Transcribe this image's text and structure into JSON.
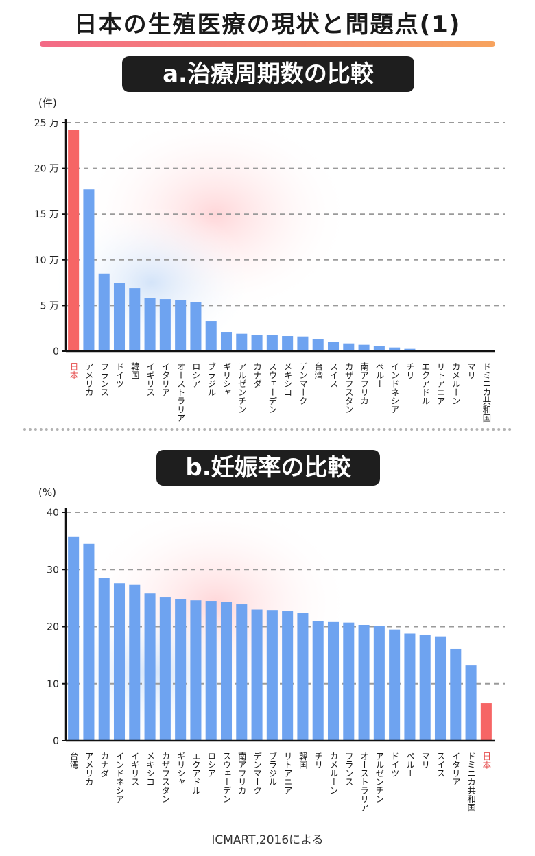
{
  "header": {
    "title": "日本の生殖医療の現状と問題点(1)"
  },
  "sections": {
    "a_title": "a.治療周期数の比較",
    "b_title": "b.妊娠率の比較"
  },
  "source": "ICMART,2016による",
  "colors": {
    "bar": "#6ea3f0",
    "highlight": "#f66565",
    "axis": "#111111",
    "grid": "#9a9a9a",
    "highlight_label": "#e64e4e"
  },
  "chart_data": [
    {
      "type": "bar",
      "title": "a.治療周期数の比較",
      "ylabel": "(件)",
      "ylim": [
        0,
        250000
      ],
      "yticks": [
        0,
        50000,
        100000,
        150000,
        200000,
        250000
      ],
      "ytick_labels": [
        "0",
        "5 万",
        "10 万",
        "15 万",
        "20 万",
        "25 万"
      ],
      "grid": "horizontal-dashed",
      "highlight": "日本",
      "categories": [
        "日本",
        "アメリカ",
        "フランス",
        "ドイツ",
        "韓国",
        "イギリス",
        "イタリア",
        "オーストラリア",
        "ロシア",
        "ブラジル",
        "ギリシャ",
        "アルゼンチン",
        "カナダ",
        "スウェーデン",
        "メキシコ",
        "デンマーク",
        "台湾",
        "スイス",
        "カザフスタン",
        "南アフリカ",
        "ペルー",
        "インドネシア",
        "チリ",
        "エクアドル",
        "リトアニア",
        "カメルーン",
        "マリ",
        "ドミニカ共和国"
      ],
      "values": [
        242000,
        177000,
        85000,
        75000,
        69000,
        58000,
        57000,
        56000,
        54000,
        33000,
        21000,
        19000,
        18000,
        17500,
        16500,
        16000,
        13500,
        10000,
        8500,
        7000,
        6000,
        4000,
        2500,
        1500,
        800,
        500,
        400,
        300
      ]
    },
    {
      "type": "bar",
      "title": "b.妊娠率の比較",
      "ylabel": "(%)",
      "ylim": [
        0,
        40
      ],
      "yticks": [
        0,
        10,
        20,
        30,
        40
      ],
      "ytick_labels": [
        "0",
        "10",
        "20",
        "30",
        "40"
      ],
      "grid": "horizontal-dashed",
      "highlight": "日本",
      "categories": [
        "台湾",
        "アメリカ",
        "カナダ",
        "インドネシア",
        "イギリス",
        "メキシコ",
        "カザフスタン",
        "ギリシャ",
        "エクアドル",
        "ロシア",
        "スウェーデン",
        "南アフリカ",
        "デンマーク",
        "ブラジル",
        "リトアニア",
        "韓国",
        "チリ",
        "カメルーン",
        "フランス",
        "オーストラリア",
        "アルゼンチン",
        "ドイツ",
        "ペルー",
        "マリ",
        "スイス",
        "イタリア",
        "ドミニカ共和国",
        "日本"
      ],
      "values": [
        35.7,
        34.5,
        28.5,
        27.6,
        27.3,
        25.8,
        25.1,
        24.8,
        24.6,
        24.5,
        24.3,
        23.9,
        23.0,
        22.8,
        22.7,
        22.4,
        21.0,
        20.8,
        20.7,
        20.3,
        20.1,
        19.5,
        18.8,
        18.5,
        18.3,
        16.1,
        13.2,
        6.6
      ]
    }
  ]
}
